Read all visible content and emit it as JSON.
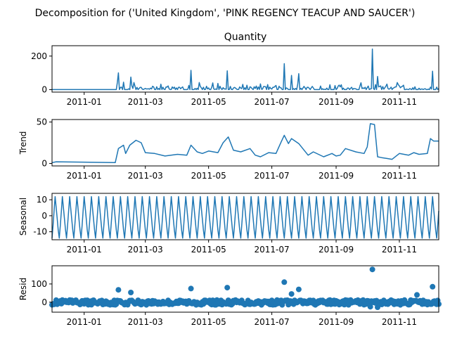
{
  "figure_title": "Decomposition for ('United Kingdom', 'PINK REGENCY TEACUP AND SAUCER')",
  "colors": {
    "line": "#1f77b4",
    "marker": "#1f77b4",
    "axis": "#000000",
    "zero_line": "#000000"
  },
  "chart_data": [
    {
      "type": "line",
      "title": "Quantity",
      "ylabel": "",
      "xlim": [
        "2010-12-01",
        "2011-12-09"
      ],
      "ylim": [
        -15,
        262
      ],
      "yticks": [
        0,
        200
      ],
      "xticks": [
        "2011-01-01",
        "2011-03-01",
        "2011-05-01",
        "2011-07-01",
        "2011-09-01",
        "2011-11-01"
      ],
      "xticklabels": [
        "2011-01",
        "2011-03",
        "2011-05",
        "2011-07",
        "2011-09",
        "2011-11"
      ],
      "series": [
        {
          "x_start": "2010-12-01",
          "x_end": "2011-12-09",
          "baseline": [
            0,
            0,
            0,
            0,
            0
          ],
          "spikes": [
            [
              "2011-02-03",
              100
            ],
            [
              "2011-02-15",
              75
            ],
            [
              "2011-04-14",
              115
            ],
            [
              "2011-05-19",
              112
            ],
            [
              "2011-07-13",
              155
            ],
            [
              "2011-07-20",
              85
            ],
            [
              "2011-07-27",
              95
            ],
            [
              "2011-10-06",
              242
            ],
            [
              "2011-10-11",
              78
            ],
            [
              "2011-12-03",
              110
            ]
          ]
        }
      ]
    },
    {
      "type": "line",
      "title": "",
      "ylabel": "Trend",
      "xlim": [
        "2010-12-01",
        "2011-12-09"
      ],
      "ylim": [
        -3,
        53
      ],
      "yticks": [
        0,
        50
      ],
      "xticks": [
        "2011-01-01",
        "2011-03-01",
        "2011-05-01",
        "2011-07-01",
        "2011-09-01",
        "2011-11-01"
      ],
      "xticklabels": [
        "2011-01",
        "2011-03",
        "2011-05",
        "2011-07",
        "2011-09",
        "2011-11"
      ],
      "series": [
        {
          "x": [
            "2010-12-01",
            "2010-12-05",
            "2011-01-31",
            "2011-02-03",
            "2011-02-08",
            "2011-02-10",
            "2011-02-14",
            "2011-02-20",
            "2011-02-25",
            "2011-03-01",
            "2011-03-10",
            "2011-03-20",
            "2011-04-01",
            "2011-04-10",
            "2011-04-14",
            "2011-04-20",
            "2011-04-25",
            "2011-05-01",
            "2011-05-10",
            "2011-05-15",
            "2011-05-20",
            "2011-05-25",
            "2011-06-01",
            "2011-06-10",
            "2011-06-15",
            "2011-06-20",
            "2011-06-28",
            "2011-07-05",
            "2011-07-10",
            "2011-07-13",
            "2011-07-17",
            "2011-07-20",
            "2011-07-27",
            "2011-08-05",
            "2011-08-10",
            "2011-08-20",
            "2011-08-28",
            "2011-09-01",
            "2011-09-05",
            "2011-09-10",
            "2011-09-20",
            "2011-09-28",
            "2011-10-01",
            "2011-10-04",
            "2011-10-08",
            "2011-10-11",
            "2011-10-15",
            "2011-10-20",
            "2011-10-25",
            "2011-11-01",
            "2011-11-10",
            "2011-11-15",
            "2011-11-20",
            "2011-11-28",
            "2011-12-01",
            "2011-12-04",
            "2011-12-09"
          ],
          "y": [
            1,
            2,
            1,
            18,
            22,
            12,
            22,
            28,
            25,
            13,
            12,
            9,
            11,
            10,
            22,
            14,
            12,
            15,
            13,
            25,
            32,
            16,
            14,
            18,
            10,
            8,
            13,
            12,
            26,
            34,
            24,
            30,
            24,
            10,
            14,
            8,
            12,
            9,
            10,
            18,
            14,
            12,
            20,
            48,
            47,
            8,
            7,
            6,
            5,
            12,
            10,
            13,
            11,
            12,
            30,
            27,
            27
          ]
        }
      ]
    },
    {
      "type": "line",
      "title": "",
      "ylabel": "Seasonal",
      "xlim": [
        "2010-12-01",
        "2011-12-09"
      ],
      "ylim": [
        -15,
        14
      ],
      "yticks": [
        -10,
        0,
        10
      ],
      "xticks": [
        "2011-01-01",
        "2011-03-01",
        "2011-05-01",
        "2011-07-01",
        "2011-09-01",
        "2011-11-01"
      ],
      "xticklabels": [
        "2011-01",
        "2011-03",
        "2011-05",
        "2011-07",
        "2011-09",
        "2011-11"
      ],
      "series": [
        {
          "x_start": "2010-12-01",
          "x_end": "2011-12-09",
          "period_days": 7,
          "pattern": [
            -14,
            -6,
            3,
            12,
            5,
            -2,
            -9
          ]
        }
      ]
    },
    {
      "type": "scatter",
      "title": "",
      "ylabel": "Resid",
      "xlim": [
        "2010-12-01",
        "2011-12-09"
      ],
      "ylim": [
        -55,
        200
      ],
      "yticks": [
        0,
        100
      ],
      "xticks": [
        "2011-01-01",
        "2011-03-01",
        "2011-05-01",
        "2011-07-01",
        "2011-09-01",
        "2011-11-01"
      ],
      "xticklabels": [
        "2011-01",
        "2011-03",
        "2011-05",
        "2011-07",
        "2011-09",
        "2011-11"
      ],
      "zero_line": 0,
      "series": [
        {
          "x_start": "2010-12-01",
          "x_end": "2011-12-09",
          "base_range": [
            -15,
            12
          ],
          "outliers": [
            [
              "2011-02-03",
              68
            ],
            [
              "2011-02-15",
              53
            ],
            [
              "2011-04-14",
              75
            ],
            [
              "2011-05-19",
              80
            ],
            [
              "2011-07-13",
              110
            ],
            [
              "2011-07-20",
              45
            ],
            [
              "2011-07-27",
              70
            ],
            [
              "2011-10-06",
              180
            ],
            [
              "2011-10-11",
              -28
            ],
            [
              "2011-10-04",
              -25
            ],
            [
              "2011-12-03",
              85
            ],
            [
              "2011-11-18",
              40
            ]
          ]
        }
      ]
    }
  ]
}
